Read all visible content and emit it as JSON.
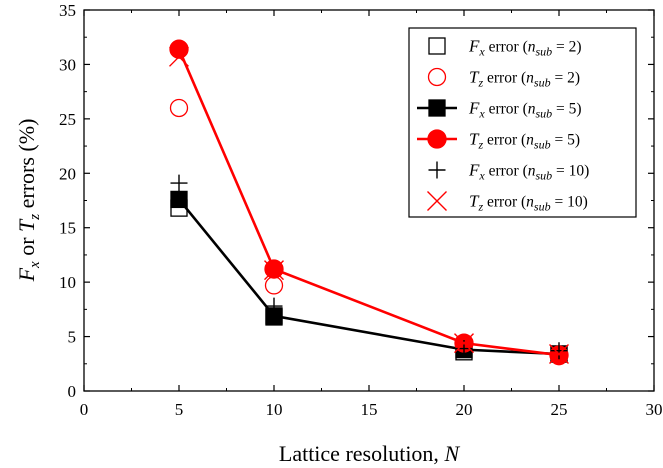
{
  "chart_data": {
    "type": "scatter",
    "title": "",
    "xlabel": {
      "text": "Lattice resolution, ",
      "var": "N"
    },
    "ylabel": {
      "parts": [
        {
          "t": "F",
          "style": "italic"
        },
        {
          "t": "x",
          "style": "italic-sub"
        },
        {
          "t": " or ",
          "style": "normal"
        },
        {
          "t": "T",
          "style": "italic"
        },
        {
          "t": "z",
          "style": "italic-sub"
        },
        {
          "t": " errors (%)",
          "style": "normal"
        }
      ]
    },
    "xlim": [
      0,
      30
    ],
    "ylim": [
      0,
      35
    ],
    "xticks": [
      0,
      5,
      10,
      15,
      20,
      25,
      30
    ],
    "yticks": [
      0,
      5,
      10,
      15,
      20,
      25,
      30,
      35
    ],
    "grid": false,
    "legend_position": "top-right",
    "series": [
      {
        "name": "Fx error (nsub = 2)",
        "legend": {
          "q": "F",
          "qsub": "x",
          "n": "2"
        },
        "marker": "open-square",
        "color": "#000000",
        "line": false,
        "x": [
          5,
          10,
          20,
          25
        ],
        "y": [
          16.8,
          6.8,
          3.6,
          3.4
        ]
      },
      {
        "name": "Tz error (nsub = 2)",
        "legend": {
          "q": "T",
          "qsub": "z",
          "n": "2"
        },
        "marker": "open-circle",
        "color": "#ff0000",
        "line": false,
        "x": [
          5,
          10,
          20,
          25
        ],
        "y": [
          26.0,
          9.7,
          4.4,
          3.2
        ]
      },
      {
        "name": "Fx error (nsub = 5)",
        "legend": {
          "q": "F",
          "qsub": "x",
          "n": "5"
        },
        "marker": "filled-square",
        "color": "#000000",
        "line": true,
        "x": [
          5,
          10,
          20,
          25
        ],
        "y": [
          17.6,
          6.9,
          3.8,
          3.4
        ]
      },
      {
        "name": "Tz error (nsub = 5)",
        "legend": {
          "q": "T",
          "qsub": "z",
          "n": "5"
        },
        "marker": "filled-circle",
        "color": "#ff0000",
        "line": true,
        "x": [
          5,
          10,
          20,
          25
        ],
        "y": [
          31.4,
          11.2,
          4.4,
          3.3
        ]
      },
      {
        "name": "Fx error (nsub = 10)",
        "legend": {
          "q": "F",
          "qsub": "x",
          "n": "10"
        },
        "marker": "plus",
        "color": "#000000",
        "line": false,
        "x": [
          5,
          10,
          20,
          25
        ],
        "y": [
          19.1,
          7.8,
          3.9,
          3.7
        ]
      },
      {
        "name": "Tz error (nsub = 10)",
        "legend": {
          "q": "T",
          "qsub": "z",
          "n": "10"
        },
        "marker": "cross",
        "color": "#ff0000",
        "line": false,
        "x": [
          5,
          10,
          20,
          25
        ],
        "y": [
          30.7,
          11.1,
          4.4,
          3.4
        ]
      }
    ]
  }
}
